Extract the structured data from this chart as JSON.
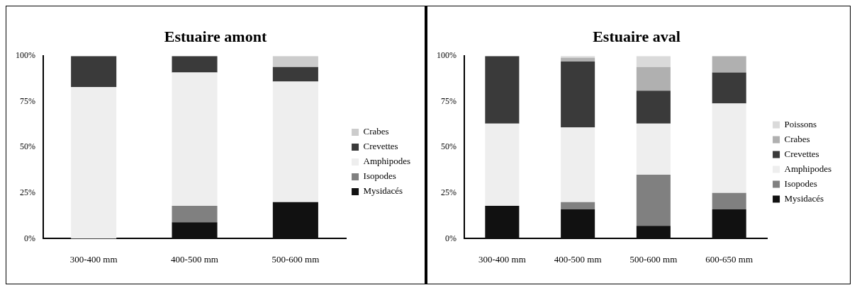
{
  "chart_data": [
    {
      "type": "bar",
      "title": "Estuaire amont",
      "stacked": true,
      "legend": "right",
      "grid": false,
      "categories": [
        "300-400 mm",
        "400-500 mm",
        "500-600 mm"
      ],
      "ylim": [
        0,
        100
      ],
      "yticks": [
        {
          "value": 0,
          "label": "0%"
        },
        {
          "value": 25,
          "label": "25%"
        },
        {
          "value": 50,
          "label": "50%"
        },
        {
          "value": 75,
          "label": "75%"
        },
        {
          "value": 100,
          "label": "100%"
        }
      ],
      "series": [
        {
          "name": "Mysidacés",
          "color": "#111111",
          "values": [
            0,
            9,
            20
          ]
        },
        {
          "name": "Isopodes",
          "color": "#808080",
          "values": [
            0,
            9,
            0
          ]
        },
        {
          "name": "Amphipodes",
          "color": "#eeeeee",
          "values": [
            83,
            73,
            66
          ]
        },
        {
          "name": "Crevettes",
          "color": "#3a3a3a",
          "values": [
            17,
            9,
            8
          ]
        },
        {
          "name": "Crabes",
          "color": "#cccccc",
          "values": [
            0,
            0,
            6
          ]
        }
      ]
    },
    {
      "type": "bar",
      "title": "Estuaire aval",
      "stacked": true,
      "legend": "right",
      "grid": false,
      "categories": [
        "300-400 mm",
        "400-500 mm",
        "500-600 mm",
        "600-650 mm"
      ],
      "ylim": [
        0,
        100
      ],
      "yticks": [
        {
          "value": 0,
          "label": "0%"
        },
        {
          "value": 25,
          "label": "25%"
        },
        {
          "value": 50,
          "label": "50%"
        },
        {
          "value": 75,
          "label": "75%"
        },
        {
          "value": 100,
          "label": "100%"
        }
      ],
      "series": [
        {
          "name": "Mysidacés",
          "color": "#111111",
          "values": [
            18,
            16,
            7,
            16
          ]
        },
        {
          "name": "Isopodes",
          "color": "#808080",
          "values": [
            0,
            4,
            28,
            9
          ]
        },
        {
          "name": "Amphipodes",
          "color": "#eeeeee",
          "values": [
            45,
            41,
            28,
            49
          ]
        },
        {
          "name": "Crevettes",
          "color": "#3a3a3a",
          "values": [
            37,
            36,
            18,
            17
          ]
        },
        {
          "name": "Crabes",
          "color": "#b0b0b0",
          "values": [
            0,
            2,
            13,
            9
          ]
        },
        {
          "name": "Poissons",
          "color": "#dadada",
          "values": [
            0,
            1,
            6,
            0
          ]
        }
      ]
    }
  ]
}
